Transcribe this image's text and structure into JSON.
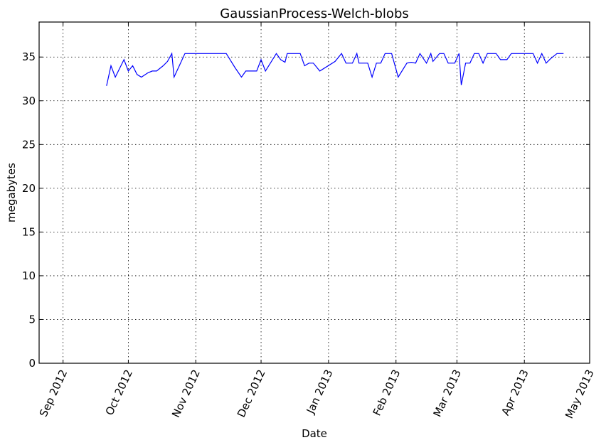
{
  "chart_data": {
    "type": "line",
    "title": "GaussianProcess-Welch-blobs",
    "xlabel": "Date",
    "ylabel": "megabytes",
    "xlim": [
      "2012-08-21",
      "2013-05-01"
    ],
    "ylim": [
      0,
      39
    ],
    "grid": true,
    "x_ticks": [
      {
        "date": "2012-09-01",
        "label": "Sep 2012"
      },
      {
        "date": "2012-10-01",
        "label": "Oct 2012"
      },
      {
        "date": "2012-11-01",
        "label": "Nov 2012"
      },
      {
        "date": "2012-12-01",
        "label": "Dec 2012"
      },
      {
        "date": "2013-01-01",
        "label": "Jan 2013"
      },
      {
        "date": "2013-02-01",
        "label": "Feb 2013"
      },
      {
        "date": "2013-03-01",
        "label": "Mar 2013"
      },
      {
        "date": "2013-04-01",
        "label": "Apr 2013"
      },
      {
        "date": "2013-05-01",
        "label": "May 2013"
      }
    ],
    "y_ticks": [
      0,
      5,
      10,
      15,
      20,
      25,
      30,
      35
    ],
    "colors": {
      "series": "#0000ff"
    },
    "series": [
      {
        "points": [
          [
            "2012-09-21",
            31.7
          ],
          [
            "2012-09-23",
            34.0
          ],
          [
            "2012-09-25",
            32.7
          ],
          [
            "2012-09-29",
            34.7
          ],
          [
            "2012-10-01",
            33.4
          ],
          [
            "2012-10-03",
            34.0
          ],
          [
            "2012-10-05",
            33.0
          ],
          [
            "2012-10-07",
            32.7
          ],
          [
            "2012-10-10",
            33.2
          ],
          [
            "2012-10-12",
            33.4
          ],
          [
            "2012-10-14",
            33.4
          ],
          [
            "2012-10-17",
            34.0
          ],
          [
            "2012-10-19",
            34.5
          ],
          [
            "2012-10-21",
            35.4
          ],
          [
            "2012-10-22",
            32.7
          ],
          [
            "2012-10-27",
            35.4
          ],
          [
            "2012-10-31",
            35.4
          ],
          [
            "2012-11-05",
            35.4
          ],
          [
            "2012-11-10",
            35.4
          ],
          [
            "2012-11-15",
            35.4
          ],
          [
            "2012-11-19",
            33.8
          ],
          [
            "2012-11-22",
            32.7
          ],
          [
            "2012-11-24",
            33.4
          ],
          [
            "2012-11-29",
            33.4
          ],
          [
            "2012-12-01",
            34.7
          ],
          [
            "2012-12-03",
            33.4
          ],
          [
            "2012-12-08",
            35.4
          ],
          [
            "2012-12-10",
            34.7
          ],
          [
            "2012-12-12",
            34.4
          ],
          [
            "2012-12-13",
            35.4
          ],
          [
            "2012-12-19",
            35.4
          ],
          [
            "2012-12-21",
            34.0
          ],
          [
            "2012-12-23",
            34.3
          ],
          [
            "2012-12-25",
            34.3
          ],
          [
            "2012-12-28",
            33.4
          ],
          [
            "2013-01-04",
            34.5
          ],
          [
            "2013-01-07",
            35.4
          ],
          [
            "2013-01-09",
            34.3
          ],
          [
            "2013-01-12",
            34.3
          ],
          [
            "2013-01-14",
            35.4
          ],
          [
            "2013-01-15",
            34.3
          ],
          [
            "2013-01-19",
            34.3
          ],
          [
            "2013-01-21",
            32.7
          ],
          [
            "2013-01-23",
            34.3
          ],
          [
            "2013-01-25",
            34.3
          ],
          [
            "2013-01-27",
            35.4
          ],
          [
            "2013-01-30",
            35.4
          ],
          [
            "2013-02-02",
            32.7
          ],
          [
            "2013-02-06",
            34.3
          ],
          [
            "2013-02-08",
            34.4
          ],
          [
            "2013-02-10",
            34.3
          ],
          [
            "2013-02-12",
            35.4
          ],
          [
            "2013-02-15",
            34.3
          ],
          [
            "2013-02-17",
            35.4
          ],
          [
            "2013-02-18",
            34.5
          ],
          [
            "2013-02-21",
            35.4
          ],
          [
            "2013-02-23",
            35.4
          ],
          [
            "2013-02-25",
            34.3
          ],
          [
            "2013-02-28",
            34.3
          ],
          [
            "2013-03-02",
            35.4
          ],
          [
            "2013-03-03",
            31.8
          ],
          [
            "2013-03-05",
            34.3
          ],
          [
            "2013-03-07",
            34.3
          ],
          [
            "2013-03-09",
            35.4
          ],
          [
            "2013-03-11",
            35.4
          ],
          [
            "2013-03-13",
            34.3
          ],
          [
            "2013-03-15",
            35.4
          ],
          [
            "2013-03-19",
            35.4
          ],
          [
            "2013-03-21",
            34.7
          ],
          [
            "2013-03-24",
            34.7
          ],
          [
            "2013-03-26",
            35.4
          ],
          [
            "2013-04-02",
            35.4
          ],
          [
            "2013-04-05",
            35.4
          ],
          [
            "2013-04-07",
            34.3
          ],
          [
            "2013-04-09",
            35.4
          ],
          [
            "2013-04-11",
            34.3
          ],
          [
            "2013-04-13",
            34.8
          ],
          [
            "2013-04-16",
            35.4
          ],
          [
            "2013-04-19",
            35.4
          ]
        ]
      }
    ]
  }
}
